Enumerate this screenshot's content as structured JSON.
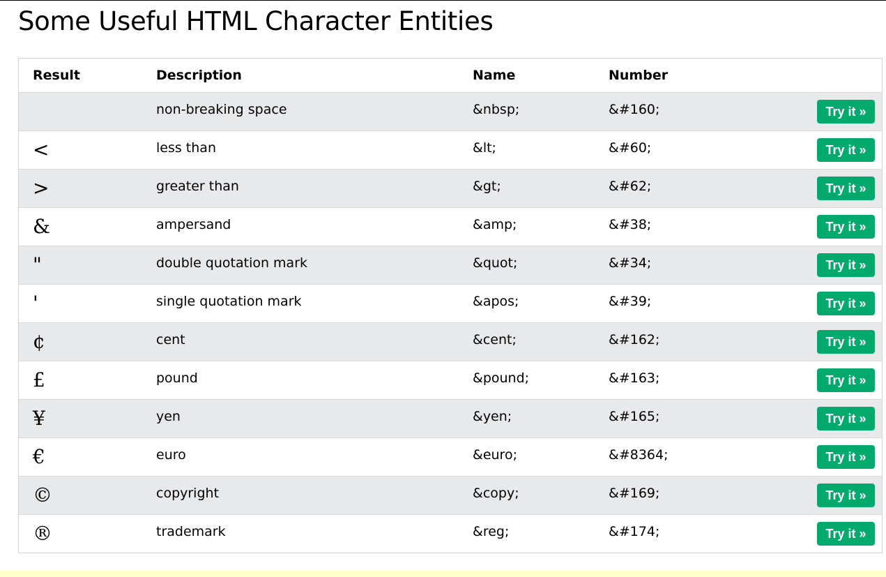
{
  "page": {
    "title": "Some Useful HTML Character Entities"
  },
  "table": {
    "headers": {
      "result": "Result",
      "description": "Description",
      "name": "Name",
      "number": "Number"
    },
    "button_label": "Try it »",
    "rows": [
      {
        "result": " ",
        "description": "non-breaking space",
        "name": "&nbsp;",
        "number": "&#160;"
      },
      {
        "result": "<",
        "description": "less than",
        "name": "&lt;",
        "number": "&#60;"
      },
      {
        "result": ">",
        "description": "greater than",
        "name": "&gt;",
        "number": "&#62;"
      },
      {
        "result": "&",
        "description": "ampersand",
        "name": "&amp;",
        "number": "&#38;"
      },
      {
        "result": "\"",
        "description": "double quotation mark",
        "name": "&quot;",
        "number": "&#34;"
      },
      {
        "result": "'",
        "description": "single quotation mark",
        "name": "&apos;",
        "number": "&#39;"
      },
      {
        "result": "¢",
        "description": "cent",
        "name": "&cent;",
        "number": "&#162;"
      },
      {
        "result": "£",
        "description": "pound",
        "name": "&pound;",
        "number": "&#163;"
      },
      {
        "result": "¥",
        "description": "yen",
        "name": "&yen;",
        "number": "&#165;"
      },
      {
        "result": "€",
        "description": "euro",
        "name": "&euro;",
        "number": "&#8364;"
      },
      {
        "result": "©",
        "description": "copyright",
        "name": "&copy;",
        "number": "&#169;"
      },
      {
        "result": "®",
        "description": "trademark",
        "name": "&reg;",
        "number": "&#174;"
      }
    ]
  },
  "colors": {
    "button": "#04aa6d",
    "shaded_row": "#e7e9eb",
    "footer_strip": "#ffffcc"
  }
}
